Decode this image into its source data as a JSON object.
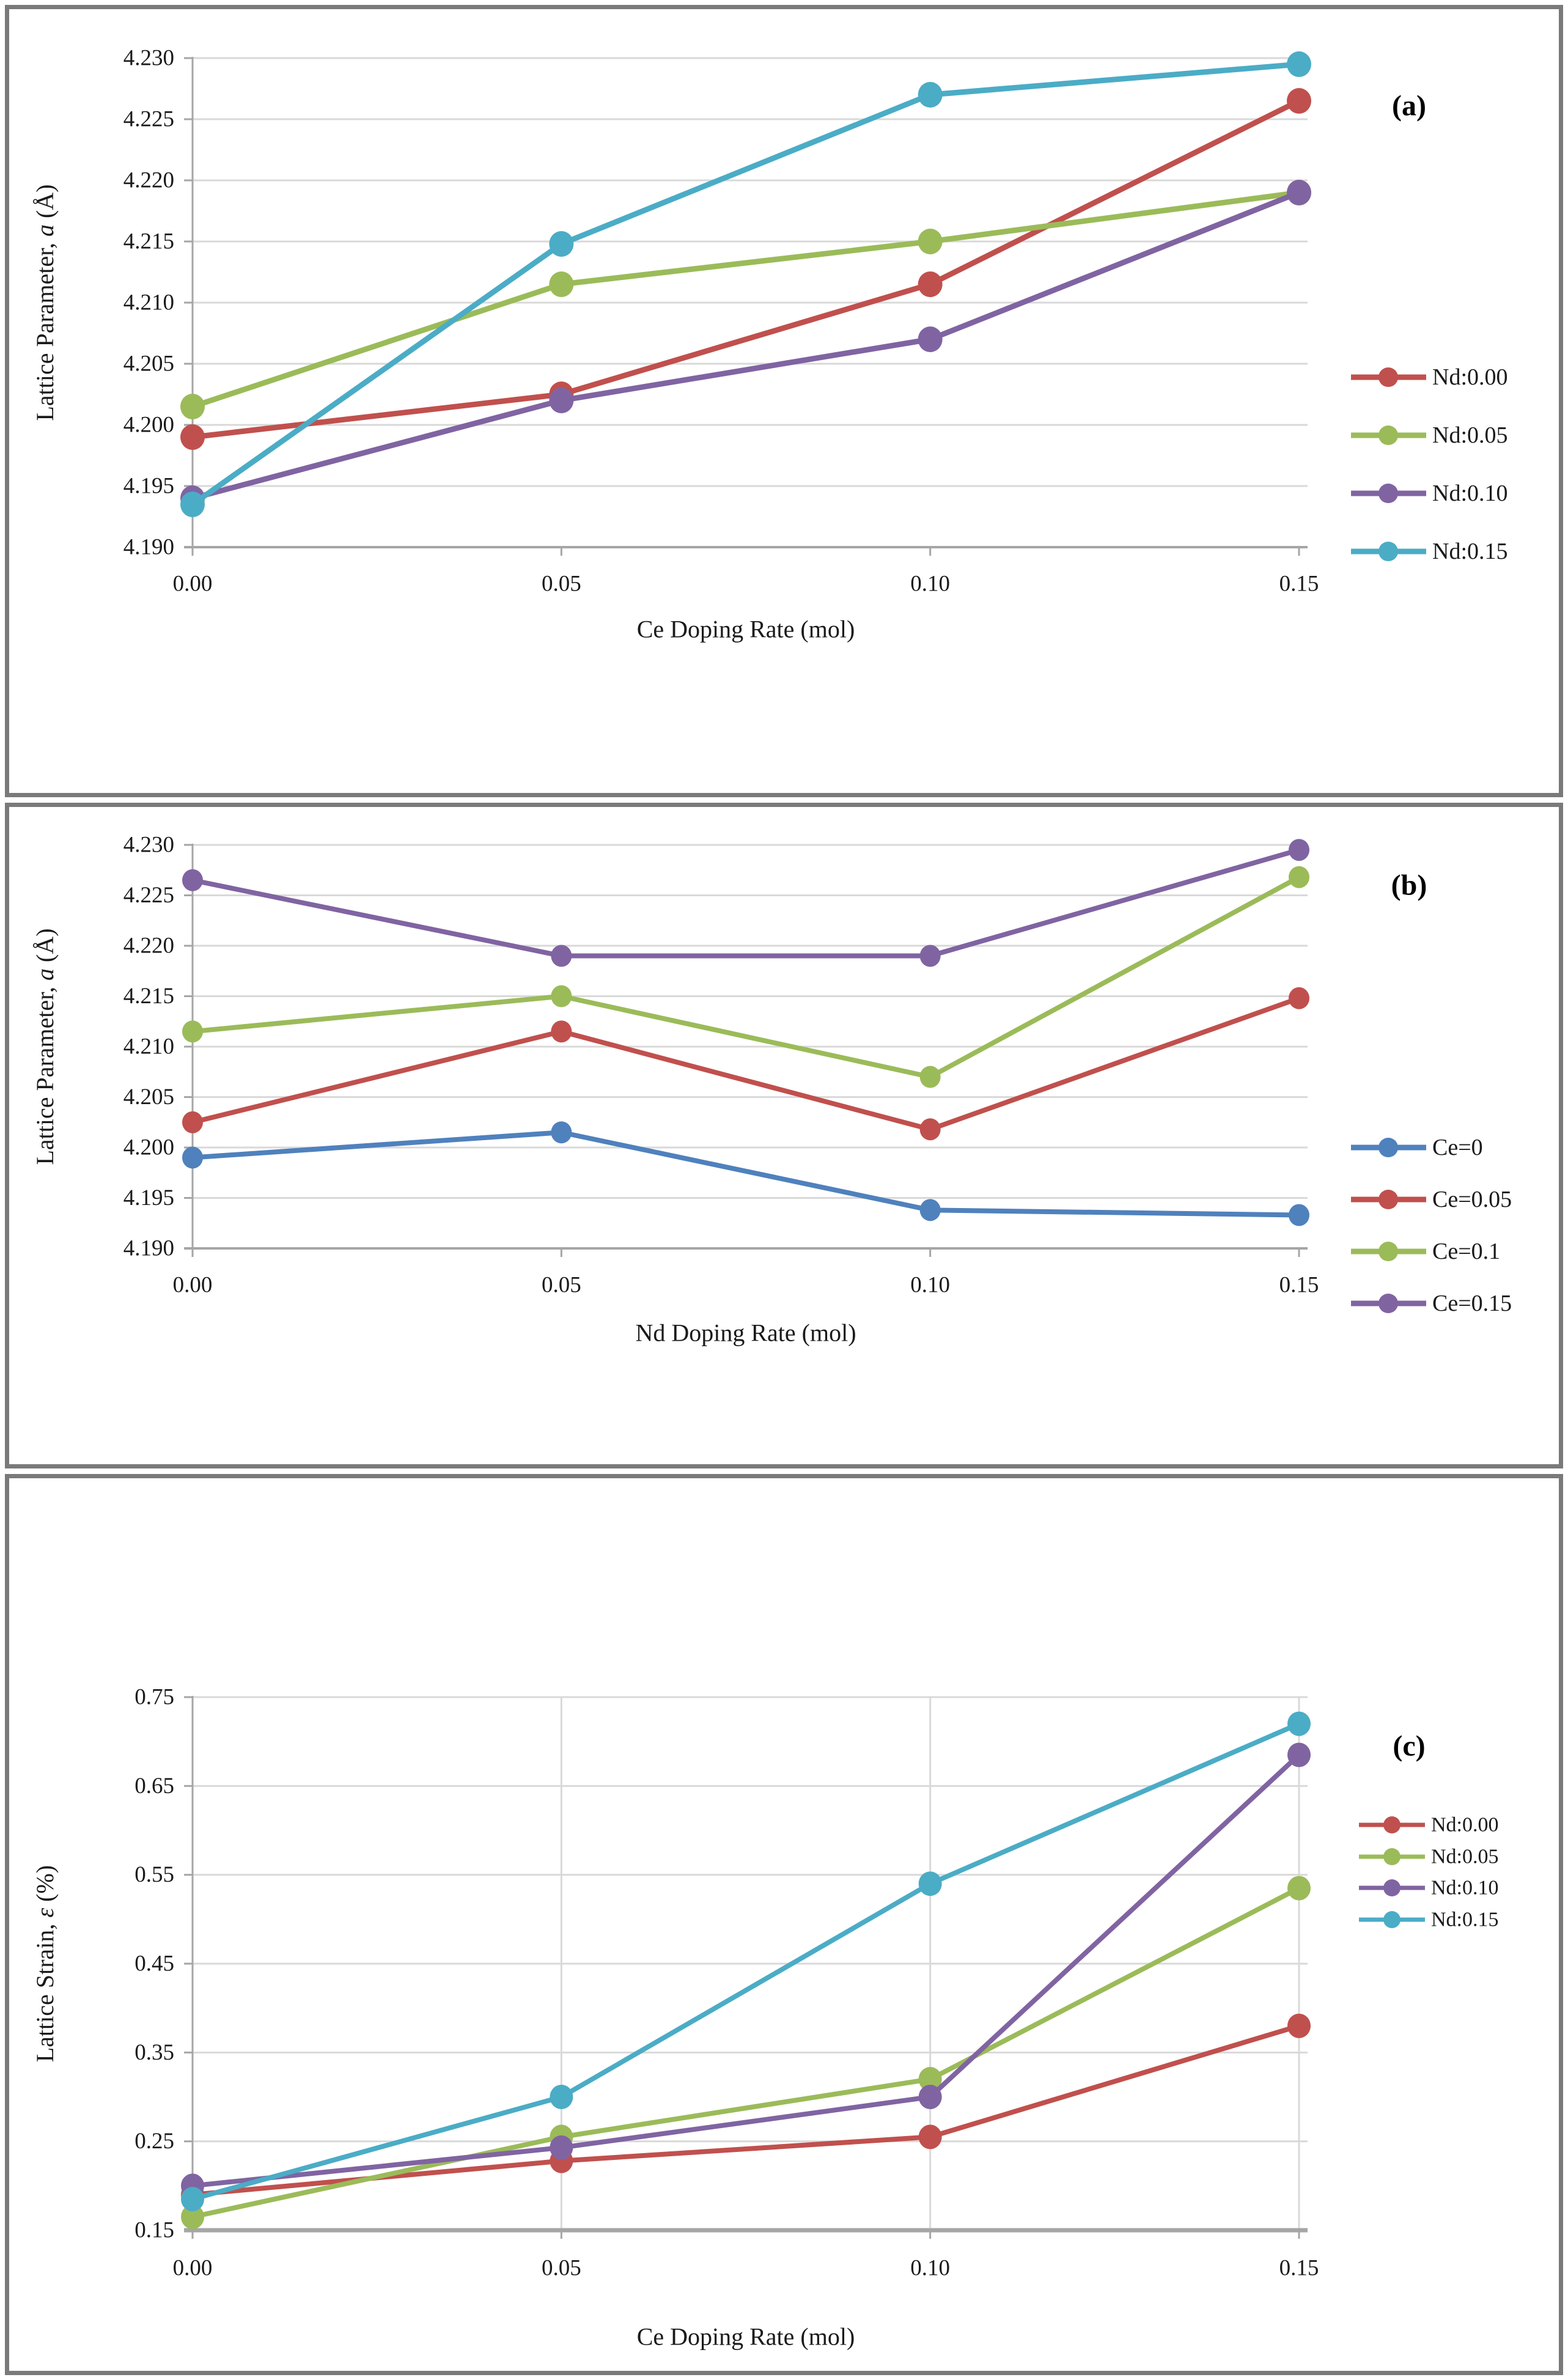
{
  "colors": {
    "red": "#C0504D",
    "green": "#9BBB59",
    "purple": "#8064A2",
    "cyan": "#4BACC6",
    "blue": "#4F81BD",
    "gridline": "#D9D9D9",
    "axis_line": "#A6A6A6",
    "tick_text": "#1a1a1a",
    "panel_border": "#7A7A7A"
  },
  "chart_data": [
    {
      "type": "line",
      "panel_label": "(a)",
      "xlabel": "Ce Doping Rate (mol)",
      "ylabel": "Lattice Parameter, a (Å)",
      "ylabel_parts": {
        "prefix": "Lattice Parameter, ",
        "symbol": "a",
        "suffix": " (Å)"
      },
      "x": [
        0.0,
        0.05,
        0.1,
        0.15
      ],
      "x_tick_labels": [
        "0.00",
        "0.05",
        "0.10",
        "0.15"
      ],
      "xlim": [
        0,
        0.15
      ],
      "y_ticks": [
        4.19,
        4.195,
        4.2,
        4.205,
        4.21,
        4.215,
        4.22,
        4.225,
        4.23
      ],
      "y_tick_labels": [
        "4.190",
        "4.195",
        "4.200",
        "4.205",
        "4.210",
        "4.215",
        "4.220",
        "4.225",
        "4.230"
      ],
      "ylim": [
        4.19,
        4.23
      ],
      "grid": "horizontal",
      "legend_position": "right",
      "series": [
        {
          "name": "Nd:0.00",
          "color": "#C0504D",
          "values": [
            4.199,
            4.2025,
            4.2115,
            4.2265
          ]
        },
        {
          "name": "Nd:0.05",
          "color": "#9BBB59",
          "values": [
            4.2015,
            4.2115,
            4.215,
            4.219
          ]
        },
        {
          "name": "Nd:0.10",
          "color": "#8064A2",
          "values": [
            4.194,
            4.202,
            4.207,
            4.219
          ]
        },
        {
          "name": "Nd:0.15",
          "color": "#4BACC6",
          "values": [
            4.1935,
            4.2148,
            4.227,
            4.2295
          ]
        }
      ]
    },
    {
      "type": "line",
      "panel_label": "(b)",
      "xlabel": "Nd Doping Rate (mol)",
      "ylabel": "Lattice Parameter, a (Å)",
      "ylabel_parts": {
        "prefix": "Lattice Parameter, ",
        "symbol": "a",
        "suffix": " (Å)"
      },
      "x": [
        0.0,
        0.05,
        0.1,
        0.15
      ],
      "x_tick_labels": [
        "0.00",
        "0.05",
        "0.10",
        "0.15"
      ],
      "xlim": [
        0,
        0.15
      ],
      "y_ticks": [
        4.19,
        4.195,
        4.2,
        4.205,
        4.21,
        4.215,
        4.22,
        4.225,
        4.23
      ],
      "y_tick_labels": [
        "4.190",
        "4.195",
        "4.200",
        "4.205",
        "4.210",
        "4.215",
        "4.220",
        "4.225",
        "4.230"
      ],
      "ylim": [
        4.19,
        4.23
      ],
      "grid": "horizontal",
      "legend_position": "right",
      "series": [
        {
          "name": "Ce=0",
          "color": "#4F81BD",
          "values": [
            4.199,
            4.2015,
            4.1938,
            4.1933
          ]
        },
        {
          "name": "Ce=0.05",
          "color": "#C0504D",
          "values": [
            4.2025,
            4.2115,
            4.2018,
            4.2148
          ]
        },
        {
          "name": "Ce=0.1",
          "color": "#9BBB59",
          "values": [
            4.2115,
            4.215,
            4.207,
            4.2268
          ]
        },
        {
          "name": "Ce=0.15",
          "color": "#8064A2",
          "values": [
            4.2265,
            4.219,
            4.219,
            4.2295
          ]
        }
      ]
    },
    {
      "type": "line",
      "panel_label": "(c)",
      "xlabel": "Ce Doping Rate (mol)",
      "ylabel": "Lattice Strain, ε (%)",
      "ylabel_parts": {
        "prefix": "Lattice Strain, ",
        "symbol": "ε",
        "suffix": " (%)"
      },
      "x": [
        0.0,
        0.05,
        0.1,
        0.15
      ],
      "x_tick_labels": [
        "0.00",
        "0.05",
        "0.10",
        "0.15"
      ],
      "xlim": [
        0,
        0.15
      ],
      "y_ticks": [
        0.15,
        0.25,
        0.35,
        0.45,
        0.55,
        0.65,
        0.75
      ],
      "y_tick_labels": [
        "0.15",
        "0.25",
        "0.35",
        "0.45",
        "0.55",
        "0.65",
        "0.75"
      ],
      "ylim": [
        0.15,
        0.75
      ],
      "grid": "horizontal+vertical",
      "legend_position": "right",
      "series": [
        {
          "name": "Nd:0.00",
          "color": "#C0504D",
          "values": [
            0.19,
            0.228,
            0.255,
            0.38
          ]
        },
        {
          "name": "Nd:0.05",
          "color": "#9BBB59",
          "values": [
            0.165,
            0.255,
            0.32,
            0.535
          ]
        },
        {
          "name": "Nd:0.10",
          "color": "#8064A2",
          "values": [
            0.2,
            0.243,
            0.3,
            0.685
          ]
        },
        {
          "name": "Nd:0.15",
          "color": "#4BACC6",
          "values": [
            0.185,
            0.3,
            0.54,
            0.72
          ]
        }
      ]
    }
  ]
}
